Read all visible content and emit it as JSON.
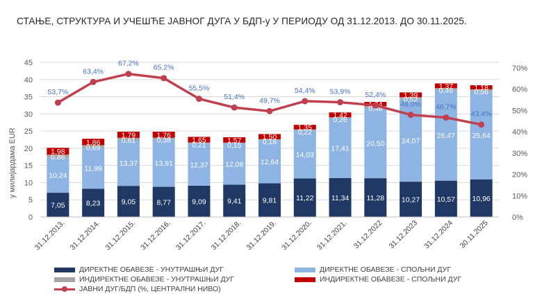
{
  "title": "СТАЊЕ, СТРУКТУРА И УЧЕШЋЕ ЈАВНОГ ДУГА У БДП-у У ПЕРИОДУ ОД 31.12.2013. ДО 30.11.2025.",
  "chart_data": {
    "type": "bar",
    "stacked": true,
    "categories": [
      "31.12.2013.",
      "31.12.2014.",
      "31.12.2015.",
      "31.12.2016.",
      "31.12.2017.",
      "31.12.2018.",
      "31.12.2019.",
      "31.12.2020.",
      "31.12.2021.",
      "31.12.2022",
      "31.12.2023",
      "31.12.2024",
      "30.11.2025"
    ],
    "ylabel": "у милијардама EUR",
    "ylim": [
      0,
      45
    ],
    "yticks": [
      0,
      5,
      10,
      15,
      20,
      25,
      30,
      35,
      40,
      45
    ],
    "y2lim": [
      0,
      70
    ],
    "y2ticks": [
      "0%",
      "10%",
      "20%",
      "30%",
      "40%",
      "50%",
      "60%",
      "70%"
    ],
    "series": [
      {
        "name": "ДИРЕКТНЕ ОБАВЕЗЕ - УНУТРАШЊИ ДУГ",
        "color": "#1f3864",
        "values": [
          7.05,
          8.23,
          9.05,
          8.77,
          9.09,
          9.41,
          9.81,
          11.22,
          11.34,
          11.28,
          10.27,
          10.57,
          10.96
        ],
        "labels": [
          "7,05",
          "8,23",
          "9,05",
          "8,77",
          "9,09",
          "9,41",
          "9,81",
          "11,22",
          "11,34",
          "11,28",
          "10,27",
          "10,57",
          "10,96"
        ]
      },
      {
        "name": "ДИРЕКТНЕ ОБАВЕЗЕ - СПОЉНИ ДУГ",
        "color": "#8eb4e3",
        "values": [
          10.24,
          11.99,
          13.37,
          13.91,
          12.37,
          12.08,
          12.64,
          14.03,
          17.41,
          20.5,
          24.07,
          26.47,
          25.64
        ],
        "labels": [
          "10,24",
          "11,99",
          "13,37",
          "13,91",
          "12,37",
          "12,08",
          "12,64",
          "14,03",
          "17,41",
          "20,50",
          "24,07",
          "26,47",
          "25,64"
        ]
      },
      {
        "name": "ИНДИРЕКТНЕ ОБАВЕЗЕ - УНУТРАШЊИ ДУГ",
        "color": "#a6a6a6",
        "values": [
          0.86,
          0.69,
          0.61,
          0.38,
          0.21,
          0.15,
          0.18,
          0.22,
          0.26,
          0.48,
          0.52,
          0.46,
          0.56
        ],
        "labels": [
          "0,86",
          "0,69",
          "0,61",
          "0,38",
          "0,21",
          "0,15",
          "0,18",
          "0,22",
          "0,26",
          "0,48",
          "0,52",
          "0,46",
          "0,56"
        ]
      },
      {
        "name": "ИНДИРЕКТНЕ ОБАВЕЗЕ - СПОЉНИ ДУГ",
        "color": "#c00000",
        "values": [
          1.98,
          1.86,
          1.79,
          1.76,
          1.65,
          1.57,
          1.5,
          1.35,
          1.42,
          1.24,
          1.39,
          1.37,
          1.18
        ],
        "labels": [
          "1,98",
          "1,86",
          "1,79",
          "1,76",
          "1,65",
          "1,57",
          "1,50",
          "1,35",
          "1,42",
          "1,24",
          "1,39",
          "1,37",
          "1,18"
        ]
      }
    ],
    "line": {
      "name": "ЈАВНИ ДУГ/БДП (%, ЦЕНТРАЛНИ НИВО)",
      "color": "#c0404f",
      "axis": "right",
      "values": [
        53.7,
        63.4,
        67.2,
        65.2,
        55.5,
        51.4,
        49.7,
        54.4,
        53.9,
        52.4,
        48.0,
        46.7,
        43.4
      ],
      "labels": [
        "53,7%",
        "63,4%",
        "67,2%",
        "65,2%",
        "55,5%",
        "51,4%",
        "49,7%",
        "54,4%",
        "53,9%",
        "52,4%",
        "48,0%",
        "46,7%",
        "43,4%"
      ]
    },
    "legend_position": "bottom"
  }
}
